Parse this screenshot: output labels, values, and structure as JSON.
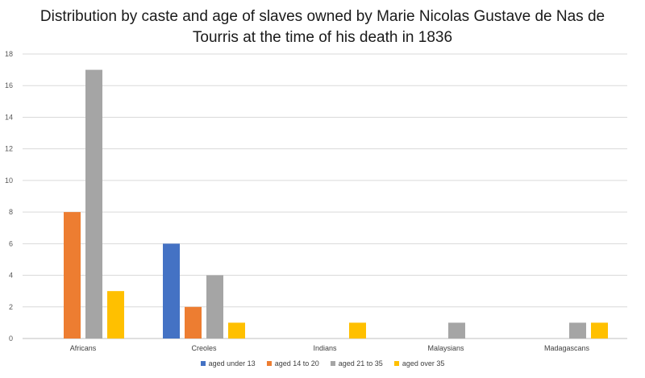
{
  "chart_data": {
    "type": "bar",
    "title_lines": [
      "Distribution by caste and age of slaves owned by Marie Nicolas Gustave de Nas de",
      "Tourris at the time of his death in 1836"
    ],
    "categories": [
      "Africans",
      "Creoles",
      "Indians",
      "Malaysians",
      "Madagascans"
    ],
    "series": [
      {
        "name": "aged under 13",
        "color": "#4472C4",
        "values": [
          0,
          6,
          0,
          0,
          0
        ]
      },
      {
        "name": "aged 14 to 20",
        "color": "#ED7D31",
        "values": [
          8,
          2,
          0,
          0,
          0
        ]
      },
      {
        "name": "aged 21 to 35",
        "color": "#A5A5A5",
        "values": [
          17,
          4,
          0,
          1,
          1
        ]
      },
      {
        "name": "aged over 35",
        "color": "#FFC000",
        "values": [
          3,
          1,
          1,
          0,
          1
        ]
      }
    ],
    "ylim": [
      0,
      18
    ],
    "yticks": [
      "0",
      "2",
      "4",
      "6",
      "8",
      "10",
      "12",
      "14",
      "16",
      "18"
    ],
    "grid": true,
    "legend_position": "bottom"
  }
}
